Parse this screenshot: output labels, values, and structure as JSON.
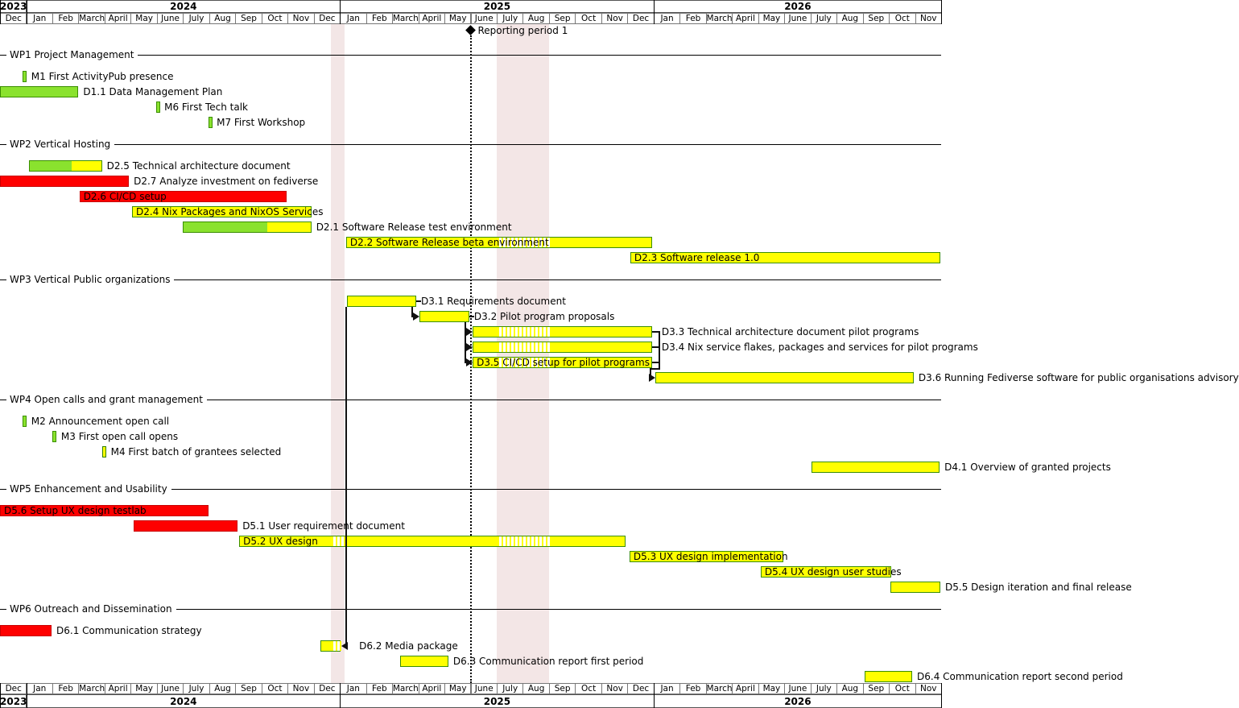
{
  "colors": {
    "green": "#8ae22e",
    "green_border": "#3a8e00",
    "yellow": "#ffff00",
    "yellow_border": "#2e7d00",
    "red": "#fe0000",
    "red_border": "#c80000",
    "vacation_band": "#f3e6e6",
    "connector": "#111111"
  },
  "timeline": {
    "month_names": [
      "Dec",
      "Jan",
      "Feb",
      "March",
      "April",
      "May",
      "June",
      "July",
      "Aug",
      "Sep",
      "Oct",
      "Nov",
      "Dec",
      "Jan",
      "Feb",
      "March",
      "April",
      "May",
      "June",
      "July",
      "Aug",
      "Sep",
      "Oct",
      "Nov",
      "Dec",
      "Jan",
      "Feb",
      "March",
      "April",
      "May",
      "June",
      "July",
      "Aug",
      "Sep",
      "Oct",
      "Nov"
    ],
    "years": [
      {
        "label": "2023",
        "start": 0,
        "span": 1
      },
      {
        "label": "2024",
        "start": 1,
        "span": 12
      },
      {
        "label": "2025",
        "start": 13,
        "span": 12
      },
      {
        "label": "2026",
        "start": 25,
        "span": 11
      }
    ]
  },
  "annotations": {
    "reporting_period": {
      "label": "Reporting period 1",
      "month_index": 18
    },
    "vacation_bands": [
      {
        "start": 12.66,
        "end": 13.18
      },
      {
        "start": 19.0,
        "end": 21.0
      }
    ]
  },
  "chart_data": {
    "type": "gantt",
    "time_unit": "months elapsed since 2023-12-01",
    "sections": [
      {
        "name": "WP1 Project Management",
        "items": [
          {
            "id": "M1",
            "label": "M1 First ActivityPub presence",
            "kind": "milestone",
            "start": 0.95,
            "style": "green"
          },
          {
            "id": "D1.1",
            "label": "D1.1 Data Management Plan",
            "kind": "bar",
            "start": 0,
            "end": 3.0,
            "style": "green",
            "label_pos": "right"
          },
          {
            "id": "M6",
            "label": "M6 First Tech talk",
            "kind": "milestone",
            "start": 6.04,
            "style": "green"
          },
          {
            "id": "M7",
            "label": "M7 First Workshop",
            "kind": "milestone",
            "start": 8.04,
            "style": "green"
          }
        ]
      },
      {
        "name": "WP2 Vertical Hosting",
        "items": [
          {
            "id": "D2.5",
            "label": "D2.5 Technical architecture document",
            "kind": "bar",
            "start": 1.11,
            "end": 3.9,
            "style": "progress",
            "progress": 0.59,
            "label_pos": "right"
          },
          {
            "id": "D2.7",
            "label": "D2.7 Analyze investment on fediverse",
            "kind": "bar",
            "start": 0,
            "end": 4.93,
            "style": "red",
            "label_pos": "right"
          },
          {
            "id": "D2.6",
            "label": "D2.6 CI/CD setup",
            "kind": "bar",
            "start": 3.04,
            "end": 10.96,
            "style": "red",
            "label_pos": "inside"
          },
          {
            "id": "D2.4",
            "label": "D2.4 Nix Packages and NixOS Services",
            "kind": "bar",
            "start": 5.05,
            "end": 11.93,
            "style": "yellow",
            "label_pos": "inside"
          },
          {
            "id": "D2.1",
            "label": "D2.1 Software Release test environment",
            "kind": "bar",
            "start": 6.98,
            "end": 11.91,
            "style": "progress",
            "progress": 0.66,
            "label_pos": "right"
          },
          {
            "id": "D2.2",
            "label": "D2.2 Software Release beta environment",
            "kind": "bar",
            "start": 13.24,
            "end": 24.94,
            "style": "yellow",
            "label_pos": "inside"
          },
          {
            "id": "D2.3",
            "label": "D2.3 Software release 1.0",
            "kind": "bar",
            "start": 24.11,
            "end": 35.97,
            "style": "yellow",
            "label_pos": "inside"
          }
        ]
      },
      {
        "name": "WP3 Vertical Public organizations",
        "items": [
          {
            "id": "D3.1",
            "label": "D3.1 Requirements document",
            "kind": "bar",
            "start": 13.27,
            "end": 15.92,
            "style": "yellow",
            "label_pos": "right",
            "tick": true
          },
          {
            "id": "D3.2",
            "label": "D3.2 Pilot program proposals",
            "kind": "bar",
            "start": 16.04,
            "end": 17.95,
            "style": "yellow",
            "label_pos": "right",
            "tick": true
          },
          {
            "id": "D3.3",
            "label": "D3.3 Technical architecture document pilot programs",
            "kind": "bar",
            "start": 18.08,
            "end": 24.94,
            "style": "yellow",
            "label_pos": "right",
            "label_dx": 12
          },
          {
            "id": "D3.4",
            "label": "D3.4 Nix service flakes, packages and services for pilot programs",
            "kind": "bar",
            "start": 18.08,
            "end": 24.94,
            "style": "yellow",
            "label_pos": "right",
            "label_dx": 12
          },
          {
            "id": "D3.5",
            "label": "D3.5 CI/CD setup for pilot programs",
            "kind": "bar",
            "start": 18.08,
            "end": 24.94,
            "style": "yellow",
            "label_pos": "inside"
          },
          {
            "id": "D3.6",
            "label": "D3.6 Running Fediverse software for public organisations advisory",
            "kind": "bar",
            "start": 25.07,
            "end": 34.95,
            "style": "yellow",
            "label_pos": "right"
          }
        ]
      },
      {
        "name": "WP4 Open calls and grant management",
        "items": [
          {
            "id": "M2",
            "label": "M2 Announcement open call",
            "kind": "milestone",
            "start": 0.95,
            "style": "green"
          },
          {
            "id": "M3",
            "label": "M3 First open call opens",
            "kind": "milestone",
            "start": 2.09,
            "style": "green"
          },
          {
            "id": "M4",
            "label": "M4 First batch of grantees selected",
            "kind": "milestone",
            "start": 3.99,
            "style": "yellow"
          },
          {
            "id": "D4.1",
            "label": "D4.1 Overview of granted projects",
            "kind": "bar",
            "start": 31.04,
            "end": 35.94,
            "style": "yellow",
            "label_pos": "right"
          }
        ]
      },
      {
        "name": "WP5 Enhancement and Usability",
        "items": [
          {
            "id": "D5.6",
            "label": "D5.6 Setup UX design testlab",
            "kind": "bar",
            "start": 0,
            "end": 7.98,
            "style": "red",
            "label_pos": "inside"
          },
          {
            "id": "D5.1",
            "label": "D5.1 User requirement document",
            "kind": "bar",
            "start": 5.11,
            "end": 9.09,
            "style": "red",
            "label_pos": "right"
          },
          {
            "id": "D5.2",
            "label": "D5.2 UX design",
            "kind": "bar",
            "start": 9.15,
            "end": 23.93,
            "style": "yellow",
            "label_pos": "inside"
          },
          {
            "id": "D5.3",
            "label": "D5.3 UX design implementation",
            "kind": "bar",
            "start": 24.08,
            "end": 29.97,
            "style": "yellow",
            "label_pos": "inside"
          },
          {
            "id": "D5.4",
            "label": "D5.4 UX design user studies",
            "kind": "bar",
            "start": 29.1,
            "end": 34.09,
            "style": "yellow",
            "label_pos": "inside"
          },
          {
            "id": "D5.5",
            "label": "D5.5 Design iteration and final release",
            "kind": "bar",
            "start": 34.06,
            "end": 35.97,
            "style": "yellow",
            "label_pos": "right"
          }
        ]
      },
      {
        "name": "WP6 Outreach and Dissemination",
        "items": [
          {
            "id": "D6.1",
            "label": "D6.1 Communication strategy",
            "kind": "bar",
            "start": 0,
            "end": 1.97,
            "style": "red",
            "label_pos": "right"
          },
          {
            "id": "D6.2",
            "label": "D6.2 Media package",
            "kind": "bar",
            "start": 12.26,
            "end": 13.03,
            "style": "yellow",
            "label_pos": "right",
            "label_dx": 23
          },
          {
            "id": "D6.3",
            "label": "D6.3 Communication report first period",
            "kind": "bar",
            "start": 15.31,
            "end": 17.15,
            "style": "yellow",
            "label_pos": "right"
          },
          {
            "id": "D6.4",
            "label": "D6.4 Communication report second period",
            "kind": "bar",
            "start": 33.08,
            "end": 34.89,
            "style": "yellow",
            "label_pos": "right"
          }
        ]
      }
    ],
    "dependencies": [
      {
        "from": "D3.1",
        "to": "D3.2",
        "style": "elbow"
      },
      {
        "from": "D3.2",
        "to": "D3.3",
        "style": "elbow"
      },
      {
        "from": "D3.2",
        "to": "D3.4",
        "style": "elbow"
      },
      {
        "from": "D3.2",
        "to": "D3.5",
        "style": "elbow"
      },
      {
        "from": "D3.3",
        "to": "D3.6",
        "style": "bracket"
      },
      {
        "from": "D3.4",
        "to": "D3.6",
        "style": "bracket"
      },
      {
        "from": "D3.5",
        "to": "D3.6",
        "style": "bracket"
      },
      {
        "from": "D3.1",
        "to": "D6.2",
        "style": "drop-arrow"
      }
    ]
  }
}
